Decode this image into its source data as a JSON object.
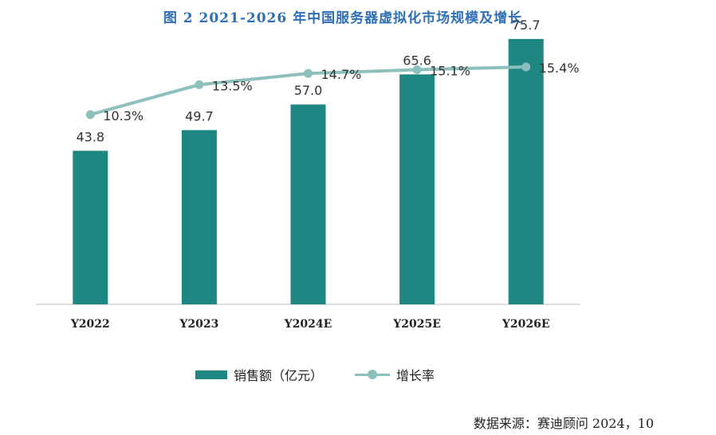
{
  "title": "图 2 2021-2026 年中国服务器虚拟化市场规模及增长",
  "source": "数据来源：赛迪顾问 2024，10",
  "chart_data": {
    "type": "bar",
    "categories": [
      "Y2022",
      "Y2023",
      "Y2024E",
      "Y2025E",
      "Y2026E"
    ],
    "series": [
      {
        "name": "销售额（亿元）",
        "type": "bar",
        "values": [
          43.8,
          49.7,
          57.0,
          65.6,
          75.7
        ],
        "labels": [
          "43.8",
          "49.7",
          "57.0",
          "65.6",
          "75.7"
        ],
        "color": "#1e8781"
      },
      {
        "name": "增长率",
        "type": "line",
        "values": [
          10.3,
          13.5,
          14.7,
          15.1,
          15.4
        ],
        "labels": [
          "10.3%",
          "13.5%",
          "14.7%",
          "15.1%",
          "15.4%"
        ],
        "color": "#8dc0bd"
      }
    ],
    "ylim_bar": [
      0,
      80
    ],
    "ylim_line": [
      -10,
      20
    ],
    "legend_position": "bottom"
  }
}
